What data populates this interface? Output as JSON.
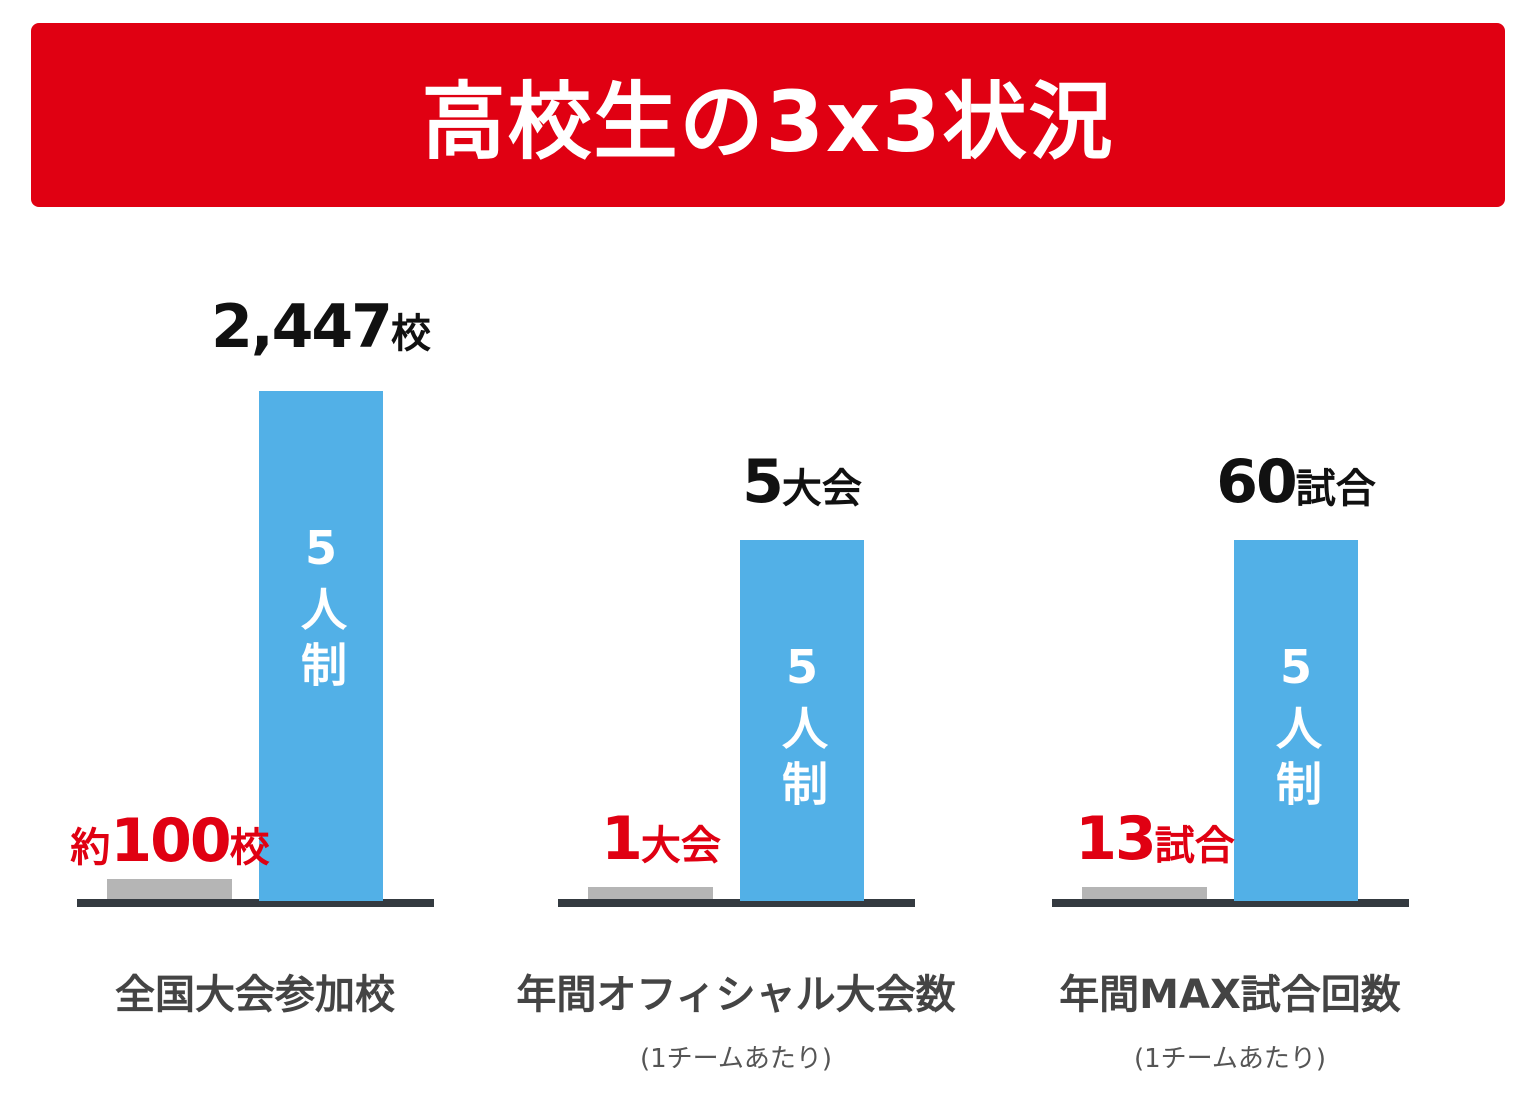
{
  "header": {
    "title": "高校生の3x3状況"
  },
  "panels": [
    {
      "label": "全国大会参加校",
      "three_by_three": {
        "prefix": "約",
        "number": "100",
        "unit": "校"
      },
      "five_by_five": {
        "number": "2,447",
        "unit": "校"
      },
      "bar_label": "5人制"
    },
    {
      "label": "年間オフィシャル大会数",
      "note": "(1チームあたり)",
      "three_by_three": {
        "number": "1",
        "unit": "大会"
      },
      "five_by_five": {
        "number": "5",
        "unit": "大会"
      },
      "bar_label": "5人制"
    },
    {
      "label": "年間MAX試合回数",
      "note": "(1チームあたり)",
      "three_by_three": {
        "number": "13",
        "unit": "試合"
      },
      "five_by_five": {
        "number": "60",
        "unit": "試合"
      },
      "bar_label": "5人制"
    }
  ]
}
